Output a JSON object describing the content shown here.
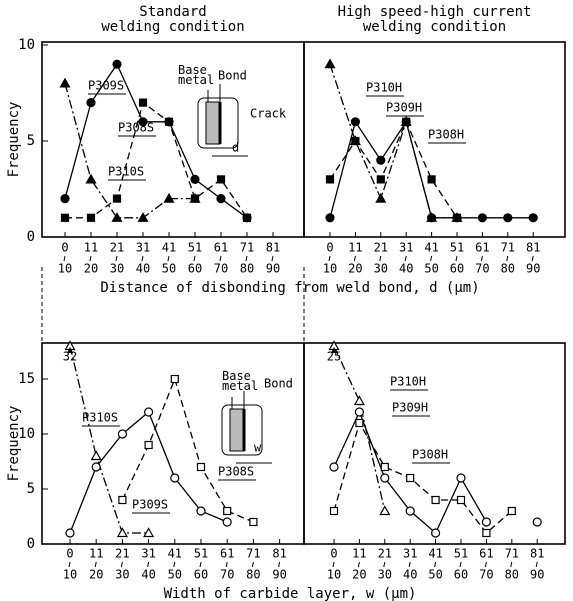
{
  "chart_data": [
    {
      "type": "line",
      "title": "Standard\nwelding condition",
      "ylabel": "Frequency",
      "xlabel": "Distance of disbonding from weld bond, d (μm)",
      "categories": [
        [
          "0",
          "10"
        ],
        [
          "11",
          "20"
        ],
        [
          "21",
          "30"
        ],
        [
          "31",
          "40"
        ],
        [
          "41",
          "50"
        ],
        [
          "51",
          "60"
        ],
        [
          "61",
          "70"
        ],
        [
          "71",
          "80"
        ],
        [
          "81",
          "90"
        ]
      ],
      "ylim": [
        0,
        10
      ],
      "yticks": [
        0,
        5,
        10
      ],
      "filled": true,
      "annotations": [
        "Base\nmetal",
        "Bond",
        "Crack",
        "d"
      ],
      "series": [
        {
          "name": "P309S",
          "marker": "circle",
          "dash": "solid",
          "color": "#000",
          "values": [
            2,
            7,
            9,
            6,
            6,
            3,
            2,
            1,
            null
          ]
        },
        {
          "name": "P308S",
          "marker": "square",
          "dash": "dashed",
          "color": "#000",
          "values": [
            1,
            1,
            2,
            7,
            6,
            2,
            3,
            1,
            null
          ]
        },
        {
          "name": "P310S",
          "marker": "triangle",
          "dash": "dashdot",
          "color": "#000",
          "values": [
            8,
            3,
            1,
            1,
            2,
            2,
            null,
            null,
            null
          ]
        }
      ]
    },
    {
      "type": "line",
      "title": "High speed-high current\nwelding condition",
      "categories": [
        [
          "0",
          "10"
        ],
        [
          "11",
          "20"
        ],
        [
          "21",
          "30"
        ],
        [
          "31",
          "40"
        ],
        [
          "41",
          "50"
        ],
        [
          "51",
          "60"
        ],
        [
          "61",
          "70"
        ],
        [
          "71",
          "80"
        ],
        [
          "81",
          "90"
        ]
      ],
      "ylim": [
        0,
        10
      ],
      "filled": true,
      "series": [
        {
          "name": "P310H",
          "marker": "triangle",
          "dash": "dashdot",
          "color": "#000",
          "values": [
            9,
            5,
            2,
            6,
            1,
            1,
            null,
            null,
            null
          ]
        },
        {
          "name": "P309H",
          "marker": "circle",
          "dash": "solid",
          "color": "#000",
          "values": [
            1,
            6,
            4,
            6,
            1,
            1,
            1,
            1,
            1
          ]
        },
        {
          "name": "P308H",
          "marker": "square",
          "dash": "dashed",
          "color": "#000",
          "values": [
            3,
            5,
            3,
            6,
            3,
            1,
            null,
            null,
            null
          ]
        }
      ]
    },
    {
      "type": "line",
      "ylabel": "Frequency",
      "xlabel": "Width of carbide layer, w (μm)",
      "categories": [
        [
          "0",
          "10"
        ],
        [
          "11",
          "20"
        ],
        [
          "21",
          "30"
        ],
        [
          "31",
          "40"
        ],
        [
          "41",
          "50"
        ],
        [
          "51",
          "60"
        ],
        [
          "61",
          "70"
        ],
        [
          "71",
          "80"
        ],
        [
          "81",
          "90"
        ]
      ],
      "ylim": [
        0,
        18
      ],
      "yticks": [
        0,
        5,
        10,
        15
      ],
      "filled": false,
      "annotations": [
        "32",
        "Base\nmetal",
        "Bond",
        "w"
      ],
      "series": [
        {
          "name": "P310S",
          "marker": "triangle",
          "dash": "dashdot",
          "color": "#000",
          "values": [
            18,
            8,
            1,
            1,
            null,
            null,
            null,
            null,
            null
          ]
        },
        {
          "name": "P309S",
          "marker": "circle",
          "dash": "solid",
          "color": "#000",
          "values": [
            1,
            7,
            10,
            12,
            6,
            3,
            2,
            null,
            null
          ]
        },
        {
          "name": "P308S",
          "marker": "square",
          "dash": "dashed",
          "color": "#000",
          "values": [
            null,
            null,
            4,
            9,
            15,
            7,
            3,
            2,
            null
          ]
        }
      ]
    },
    {
      "type": "line",
      "categories": [
        [
          "0",
          "10"
        ],
        [
          "11",
          "20"
        ],
        [
          "21",
          "30"
        ],
        [
          "31",
          "40"
        ],
        [
          "41",
          "50"
        ],
        [
          "51",
          "60"
        ],
        [
          "61",
          "70"
        ],
        [
          "71",
          "80"
        ],
        [
          "81",
          "90"
        ]
      ],
      "ylim": [
        0,
        18
      ],
      "filled": false,
      "annotations": [
        "25"
      ],
      "series": [
        {
          "name": "P310H",
          "marker": "triangle",
          "dash": "dashdot",
          "color": "#000",
          "values": [
            18,
            13,
            3,
            null,
            null,
            null,
            null,
            null,
            null
          ]
        },
        {
          "name": "P309H",
          "marker": "circle",
          "dash": "solid",
          "color": "#000",
          "values": [
            7,
            12,
            6,
            3,
            1,
            6,
            2,
            null,
            2
          ]
        },
        {
          "name": "P308H",
          "marker": "square",
          "dash": "dashed",
          "color": "#000",
          "values": [
            3,
            11,
            7,
            6,
            4,
            4,
            1,
            3,
            null
          ]
        }
      ]
    }
  ]
}
